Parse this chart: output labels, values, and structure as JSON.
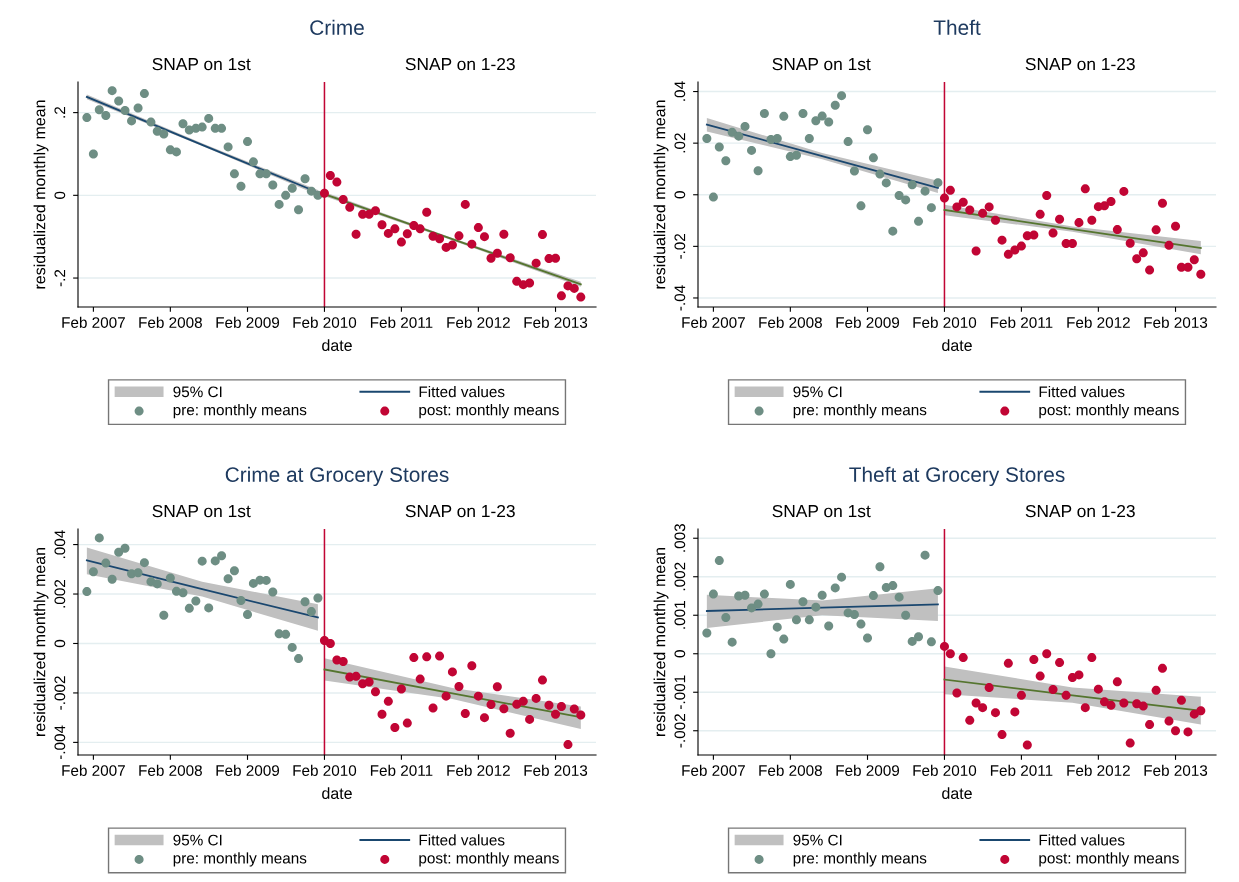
{
  "chart_data": [
    {
      "type": "scatter",
      "title": "Crime",
      "xlabel": "date",
      "ylabel": "residualized monthly mean",
      "annotations": [
        "SNAP on 1st",
        "SNAP on 1-23"
      ],
      "xlim": [
        "2006-11-20",
        "2013-08-12"
      ],
      "ylim": [
        -0.27,
        0.274
      ],
      "xticks": [
        {
          "value": "2007-02",
          "label": "Feb 2007"
        },
        {
          "value": "2008-02",
          "label": "Feb 2008"
        },
        {
          "value": "2009-02",
          "label": "Feb 2009"
        },
        {
          "value": "2010-02",
          "label": "Feb 2010"
        },
        {
          "value": "2011-02",
          "label": "Feb 2011"
        },
        {
          "value": "2012-02",
          "label": "Feb 2012"
        },
        {
          "value": "2013-02",
          "label": "Feb 2013"
        }
      ],
      "yticks": [
        {
          "value": -0.2,
          "label": "-.2"
        },
        0,
        {
          "value": 0.2,
          "label": ".2"
        }
      ],
      "grid": "y",
      "legend": "bottom",
      "ref_lines": [
        {
          "axis": "x",
          "value": "2010-02",
          "color": "#c10534"
        }
      ],
      "series": [
        {
          "name": "95% CI",
          "type": "area",
          "color": "#c0c0c0"
        },
        {
          "name": "Fitted values",
          "type": "line",
          "color": "#1a476f",
          "x": [
            "2007-01",
            "2008-07",
            "2010-01"
          ],
          "values": [
            0.238,
            0.122,
            0.007
          ],
          "lower": [
            0.232,
            0.119,
            0.001
          ],
          "upper": [
            0.244,
            0.126,
            0.013
          ]
        },
        {
          "type": "line",
          "color": "#55752f",
          "x": [
            "2010-02",
            "2011-10",
            "2013-06"
          ],
          "values": [
            0.003,
            -0.106,
            -0.215
          ],
          "lower": [
            -0.002,
            -0.109,
            -0.221
          ],
          "upper": [
            0.008,
            -0.103,
            -0.209
          ]
        },
        {
          "name": "pre: monthly means",
          "marker": "circle",
          "color": "#6e8e84",
          "x": [
            "2007-01",
            "2007-02",
            "2007-03",
            "2007-04",
            "2007-05",
            "2007-06",
            "2007-07",
            "2007-08",
            "2007-09",
            "2007-10",
            "2007-11",
            "2007-12",
            "2008-01",
            "2008-02",
            "2008-03",
            "2008-04",
            "2008-05",
            "2008-06",
            "2008-07",
            "2008-08",
            "2008-09",
            "2008-10",
            "2008-11",
            "2008-12",
            "2009-01",
            "2009-02",
            "2009-03",
            "2009-04",
            "2009-05",
            "2009-06",
            "2009-07",
            "2009-08",
            "2009-09",
            "2009-10",
            "2009-11",
            "2009-12",
            "2010-01"
          ],
          "values": [
            0.188,
            0.1,
            0.207,
            0.193,
            0.253,
            0.228,
            0.205,
            0.18,
            0.211,
            0.246,
            0.177,
            0.155,
            0.148,
            0.11,
            0.105,
            0.173,
            0.158,
            0.162,
            0.165,
            0.186,
            0.162,
            0.162,
            0.117,
            0.052,
            0.022,
            0.13,
            0.081,
            0.052,
            0.052,
            0.025,
            -0.022,
            0.0,
            0.017,
            -0.035,
            0.04,
            0.01,
            0.0
          ]
        },
        {
          "name": "post: monthly means",
          "marker": "circle",
          "color": "#c10534",
          "x": [
            "2010-02",
            "2010-03",
            "2010-04",
            "2010-05",
            "2010-06",
            "2010-07",
            "2010-08",
            "2010-09",
            "2010-10",
            "2010-11",
            "2010-12",
            "2011-01",
            "2011-02",
            "2011-03",
            "2011-04",
            "2011-05",
            "2011-06",
            "2011-07",
            "2011-08",
            "2011-09",
            "2011-10",
            "2011-11",
            "2011-12",
            "2012-01",
            "2012-02",
            "2012-03",
            "2012-04",
            "2012-05",
            "2012-06",
            "2012-07",
            "2012-08",
            "2012-09",
            "2012-10",
            "2012-11",
            "2012-12",
            "2013-01",
            "2013-02",
            "2013-03",
            "2013-04",
            "2013-05",
            "2013-06"
          ],
          "values": [
            0.005,
            0.048,
            0.032,
            -0.01,
            -0.029,
            -0.094,
            -0.046,
            -0.046,
            -0.037,
            -0.071,
            -0.092,
            -0.081,
            -0.113,
            -0.093,
            -0.073,
            -0.081,
            -0.041,
            -0.099,
            -0.105,
            -0.126,
            -0.12,
            -0.098,
            -0.022,
            -0.118,
            -0.078,
            -0.1,
            -0.152,
            -0.14,
            -0.094,
            -0.151,
            -0.208,
            -0.216,
            -0.212,
            -0.164,
            -0.095,
            -0.153,
            -0.152,
            -0.243,
            -0.219,
            -0.225,
            -0.246
          ]
        }
      ]
    },
    {
      "type": "scatter",
      "title": "Theft",
      "xlabel": "date",
      "ylabel": "residualized monthly mean",
      "annotations": [
        "SNAP on 1st",
        "SNAP on 1-23"
      ],
      "xlim": [
        "2006-11-20",
        "2013-08-12"
      ],
      "ylim": [
        -0.0435,
        0.0437
      ],
      "xticks": [
        {
          "value": "2007-02",
          "label": "Feb 2007"
        },
        {
          "value": "2008-02",
          "label": "Feb 2008"
        },
        {
          "value": "2009-02",
          "label": "Feb 2009"
        },
        {
          "value": "2010-02",
          "label": "Feb 2010"
        },
        {
          "value": "2011-02",
          "label": "Feb 2011"
        },
        {
          "value": "2012-02",
          "label": "Feb 2012"
        },
        {
          "value": "2013-02",
          "label": "Feb 2013"
        }
      ],
      "yticks": [
        {
          "value": -0.04,
          "label": "-.04"
        },
        {
          "value": -0.02,
          "label": "-.02"
        },
        0,
        {
          "value": 0.02,
          "label": ".02"
        },
        {
          "value": 0.04,
          "label": ".04"
        }
      ],
      "grid": "y",
      "legend": "bottom",
      "ref_lines": [
        {
          "axis": "x",
          "value": "2010-02",
          "color": "#c10534"
        }
      ],
      "series": [
        {
          "name": "95% CI",
          "type": "area",
          "color": "#c0c0c0"
        },
        {
          "name": "Fitted values",
          "type": "line",
          "color": "#1a476f",
          "x": [
            "2007-01",
            "2008-07",
            "2010-01"
          ],
          "values": [
            0.0272,
            0.015,
            0.0027
          ],
          "lower": [
            0.0245,
            0.0138,
            0.0007
          ],
          "upper": [
            0.0297,
            0.0162,
            0.0054
          ]
        },
        {
          "type": "line",
          "color": "#55752f",
          "x": [
            "2010-02",
            "2011-10",
            "2013-06"
          ],
          "values": [
            -0.0059,
            -0.0133,
            -0.0206
          ],
          "lower": [
            -0.0079,
            -0.0143,
            -0.0231
          ],
          "upper": [
            -0.0039,
            -0.0123,
            -0.0179
          ]
        },
        {
          "name": "pre: monthly means",
          "marker": "circle",
          "color": "#6e8e84",
          "x": [
            "2007-01",
            "2007-02",
            "2007-03",
            "2007-04",
            "2007-05",
            "2007-06",
            "2007-07",
            "2007-08",
            "2007-09",
            "2007-10",
            "2007-11",
            "2007-12",
            "2008-01",
            "2008-02",
            "2008-03",
            "2008-04",
            "2008-05",
            "2008-06",
            "2008-07",
            "2008-08",
            "2008-09",
            "2008-10",
            "2008-11",
            "2008-12",
            "2009-01",
            "2009-02",
            "2009-03",
            "2009-04",
            "2009-05",
            "2009-06",
            "2009-07",
            "2009-08",
            "2009-09",
            "2009-10",
            "2009-11",
            "2009-12",
            "2010-01"
          ],
          "values": [
            0.0218,
            -0.0009,
            0.0185,
            0.0132,
            0.0242,
            0.0227,
            0.0265,
            0.0172,
            0.0093,
            0.0315,
            0.0214,
            0.0218,
            0.0304,
            0.0148,
            0.0153,
            0.0315,
            0.0218,
            0.0287,
            0.0305,
            0.0282,
            0.0347,
            0.0384,
            0.0206,
            0.0092,
            -0.0043,
            0.0252,
            0.0143,
            0.008,
            0.0046,
            -0.0141,
            -0.0003,
            -0.002,
            0.0039,
            -0.0103,
            0.0014,
            -0.005,
            0.0047
          ]
        },
        {
          "name": "post: monthly means",
          "marker": "circle",
          "color": "#c10534",
          "x": [
            "2010-02",
            "2010-03",
            "2010-04",
            "2010-05",
            "2010-06",
            "2010-07",
            "2010-08",
            "2010-09",
            "2010-10",
            "2010-11",
            "2010-12",
            "2011-01",
            "2011-02",
            "2011-03",
            "2011-04",
            "2011-05",
            "2011-06",
            "2011-07",
            "2011-08",
            "2011-09",
            "2011-10",
            "2011-11",
            "2011-12",
            "2012-01",
            "2012-02",
            "2012-03",
            "2012-04",
            "2012-05",
            "2012-06",
            "2012-07",
            "2012-08",
            "2012-09",
            "2012-10",
            "2012-11",
            "2012-12",
            "2013-01",
            "2013-02",
            "2013-03",
            "2013-04",
            "2013-05",
            "2013-06"
          ],
          "values": [
            -0.0013,
            0.0017,
            -0.0047,
            -0.0029,
            -0.0059,
            -0.0218,
            -0.0072,
            -0.0047,
            -0.0099,
            -0.0176,
            -0.0231,
            -0.0214,
            -0.0199,
            -0.0159,
            -0.0156,
            -0.0076,
            -0.0003,
            -0.0148,
            -0.0095,
            -0.0189,
            -0.0189,
            -0.0108,
            0.0023,
            -0.0099,
            -0.0046,
            -0.0043,
            -0.0026,
            -0.0135,
            0.0013,
            -0.0188,
            -0.0248,
            -0.0225,
            -0.0292,
            -0.0136,
            -0.0033,
            -0.0196,
            -0.0122,
            -0.0281,
            -0.0281,
            -0.0252,
            -0.0308
          ]
        }
      ]
    },
    {
      "type": "scatter",
      "title": "Crime at Grocery Stores",
      "xlabel": "date",
      "ylabel": "residualized monthly mean",
      "annotations": [
        "SNAP on 1st",
        "SNAP on 1-23"
      ],
      "xlim": [
        "2006-11-20",
        "2013-08-12"
      ],
      "ylim": [
        -0.00451,
        0.00463
      ],
      "xticks": [
        {
          "value": "2007-02",
          "label": "Feb 2007"
        },
        {
          "value": "2008-02",
          "label": "Feb 2008"
        },
        {
          "value": "2009-02",
          "label": "Feb 2009"
        },
        {
          "value": "2010-02",
          "label": "Feb 2010"
        },
        {
          "value": "2011-02",
          "label": "Feb 2011"
        },
        {
          "value": "2012-02",
          "label": "Feb 2012"
        },
        {
          "value": "2013-02",
          "label": "Feb 2013"
        }
      ],
      "yticks": [
        {
          "value": -0.004,
          "label": "-.004"
        },
        {
          "value": -0.002,
          "label": "-.002"
        },
        0,
        {
          "value": 0.002,
          "label": ".002"
        },
        {
          "value": 0.004,
          "label": ".004"
        }
      ],
      "grid": "y",
      "legend": "bottom",
      "ref_lines": [
        {
          "axis": "x",
          "value": "2010-02",
          "color": "#c10534"
        }
      ],
      "series": [
        {
          "name": "95% CI",
          "type": "area",
          "color": "#c0c0c0"
        },
        {
          "name": "Fitted values",
          "type": "line",
          "color": "#1a476f",
          "x": [
            "2007-01",
            "2008-07",
            "2010-01"
          ],
          "values": [
            0.00336,
            0.0022,
            0.00105
          ],
          "lower": [
            0.0028,
            0.0019,
            0.00051
          ],
          "upper": [
            0.00388,
            0.0025,
            0.00159
          ]
        },
        {
          "type": "line",
          "color": "#55752f",
          "x": [
            "2010-02",
            "2011-10",
            "2013-06"
          ],
          "values": [
            -0.00105,
            -0.00202,
            -0.00298
          ],
          "lower": [
            -0.0015,
            -0.00225,
            -0.00346
          ],
          "upper": [
            -0.0006,
            -0.0018,
            -0.00255
          ]
        },
        {
          "name": "pre: monthly means",
          "marker": "circle",
          "color": "#6e8e84",
          "x": [
            "2007-01",
            "2007-02",
            "2007-03",
            "2007-04",
            "2007-05",
            "2007-06",
            "2007-07",
            "2007-08",
            "2007-09",
            "2007-10",
            "2007-11",
            "2007-12",
            "2008-01",
            "2008-02",
            "2008-03",
            "2008-04",
            "2008-05",
            "2008-06",
            "2008-07",
            "2008-08",
            "2008-09",
            "2008-10",
            "2008-11",
            "2008-12",
            "2009-01",
            "2009-02",
            "2009-03",
            "2009-04",
            "2009-05",
            "2009-06",
            "2009-07",
            "2009-08",
            "2009-09",
            "2009-10",
            "2009-11",
            "2009-12",
            "2010-01"
          ],
          "values": [
            0.0021,
            0.0029,
            0.00427,
            0.00325,
            0.0026,
            0.00369,
            0.00385,
            0.00282,
            0.00286,
            0.00327,
            0.0025,
            0.00241,
            0.00114,
            0.00265,
            0.00211,
            0.00205,
            0.00142,
            0.00172,
            0.00333,
            0.00144,
            0.00334,
            0.00355,
            0.00262,
            0.00294,
            0.00174,
            0.00117,
            0.00243,
            0.00256,
            0.00255,
            0.00208,
            0.00039,
            0.00037,
            -0.00016,
            -0.00061,
            0.00169,
            0.00129,
            0.00184
          ]
        },
        {
          "name": "post: monthly means",
          "marker": "circle",
          "color": "#c10534",
          "x": [
            "2010-02",
            "2010-03",
            "2010-04",
            "2010-05",
            "2010-06",
            "2010-07",
            "2010-08",
            "2010-09",
            "2010-10",
            "2010-11",
            "2010-12",
            "2011-01",
            "2011-02",
            "2011-03",
            "2011-04",
            "2011-05",
            "2011-06",
            "2011-07",
            "2011-08",
            "2011-09",
            "2011-10",
            "2011-11",
            "2011-12",
            "2012-01",
            "2012-02",
            "2012-03",
            "2012-04",
            "2012-05",
            "2012-06",
            "2012-07",
            "2012-08",
            "2012-09",
            "2012-10",
            "2012-11",
            "2012-12",
            "2013-01",
            "2013-02",
            "2013-03",
            "2013-04",
            "2013-05",
            "2013-06"
          ],
          "values": [
            0.00012,
            0.0,
            -0.00067,
            -0.00073,
            -0.00136,
            -0.00133,
            -0.00163,
            -0.00156,
            -0.00195,
            -0.00286,
            -0.00234,
            -0.0034,
            -0.00184,
            -0.00322,
            -0.00057,
            -0.00144,
            -0.00054,
            -0.00261,
            -0.00051,
            -0.00213,
            -0.00115,
            -0.00174,
            -0.00283,
            -0.0009,
            -0.00213,
            -0.003,
            -0.00247,
            -0.00175,
            -0.00264,
            -0.00363,
            -0.00246,
            -0.00234,
            -0.00307,
            -0.00222,
            -0.00148,
            -0.0025,
            -0.00286,
            -0.00255,
            -0.00409,
            -0.00265,
            -0.00289
          ]
        }
      ]
    },
    {
      "type": "scatter",
      "title": "Theft at Grocery Stores",
      "xlabel": "date",
      "ylabel": "residualized monthly mean",
      "annotations": [
        "SNAP on 1st",
        "SNAP on 1-23"
      ],
      "xlim": [
        "2006-11-20",
        "2013-08-12"
      ],
      "ylim": [
        -0.00263,
        0.00324
      ],
      "xticks": [
        {
          "value": "2007-02",
          "label": "Feb 2007"
        },
        {
          "value": "2008-02",
          "label": "Feb 2008"
        },
        {
          "value": "2009-02",
          "label": "Feb 2009"
        },
        {
          "value": "2010-02",
          "label": "Feb 2010"
        },
        {
          "value": "2011-02",
          "label": "Feb 2011"
        },
        {
          "value": "2012-02",
          "label": "Feb 2012"
        },
        {
          "value": "2013-02",
          "label": "Feb 2013"
        }
      ],
      "yticks": [
        {
          "value": -0.002,
          "label": "-.002"
        },
        {
          "value": -0.001,
          "label": "-.001"
        },
        0,
        {
          "value": 0.001,
          "label": ".001"
        },
        {
          "value": 0.002,
          "label": ".002"
        },
        {
          "value": 0.003,
          "label": ".003"
        }
      ],
      "grid": "y",
      "legend": "bottom",
      "ref_lines": [
        {
          "axis": "x",
          "value": "2010-02",
          "color": "#c10534"
        }
      ],
      "series": [
        {
          "name": "95% CI",
          "type": "area",
          "color": "#c0c0c0"
        },
        {
          "name": "Fitted values",
          "type": "line",
          "color": "#1a476f",
          "x": [
            "2007-01",
            "2008-07",
            "2010-01"
          ],
          "values": [
            0.00111,
            0.0012,
            0.00128
          ],
          "lower": [
            0.00067,
            0.001,
            0.00085
          ],
          "upper": [
            0.00153,
            0.00138,
            0.0017
          ]
        },
        {
          "type": "line",
          "color": "#55752f",
          "x": [
            "2010-02",
            "2011-10",
            "2013-06"
          ],
          "values": [
            -0.00067,
            -0.00108,
            -0.00148
          ],
          "lower": [
            -0.00105,
            -0.00127,
            -0.00184
          ],
          "upper": [
            -0.00033,
            -0.00088,
            -0.00112
          ]
        },
        {
          "name": "pre: monthly means",
          "marker": "circle",
          "color": "#6e8e84",
          "x": [
            "2007-01",
            "2007-02",
            "2007-03",
            "2007-04",
            "2007-05",
            "2007-06",
            "2007-07",
            "2007-08",
            "2007-09",
            "2007-10",
            "2007-11",
            "2007-12",
            "2008-01",
            "2008-02",
            "2008-03",
            "2008-04",
            "2008-05",
            "2008-06",
            "2008-07",
            "2008-08",
            "2008-09",
            "2008-10",
            "2008-11",
            "2008-12",
            "2009-01",
            "2009-02",
            "2009-03",
            "2009-04",
            "2009-05",
            "2009-06",
            "2009-07",
            "2009-08",
            "2009-09",
            "2009-10",
            "2009-11",
            "2009-12",
            "2010-01"
          ],
          "values": [
            0.00054,
            0.00155,
            0.00242,
            0.00094,
            0.0003,
            0.0015,
            0.00152,
            0.00119,
            0.00129,
            0.00155,
            0.0,
            0.00069,
            0.00038,
            0.0018,
            0.00088,
            0.00135,
            0.00088,
            0.00121,
            0.00152,
            0.00072,
            0.00171,
            0.00199,
            0.00106,
            0.00102,
            0.00077,
            0.00041,
            0.00151,
            0.00226,
            0.00172,
            0.00177,
            0.00147,
            0.001,
            0.00032,
            0.00044,
            0.00256,
            0.00031,
            0.00164
          ]
        },
        {
          "name": "post: monthly means",
          "marker": "circle",
          "color": "#c10534",
          "x": [
            "2010-02",
            "2010-03",
            "2010-04",
            "2010-05",
            "2010-06",
            "2010-07",
            "2010-08",
            "2010-09",
            "2010-10",
            "2010-11",
            "2010-12",
            "2011-01",
            "2011-02",
            "2011-03",
            "2011-04",
            "2011-05",
            "2011-06",
            "2011-07",
            "2011-08",
            "2011-09",
            "2011-10",
            "2011-11",
            "2011-12",
            "2012-01",
            "2012-02",
            "2012-03",
            "2012-04",
            "2012-05",
            "2012-06",
            "2012-07",
            "2012-08",
            "2012-09",
            "2012-10",
            "2012-11",
            "2012-12",
            "2013-01",
            "2013-02",
            "2013-03",
            "2013-04",
            "2013-05",
            "2013-06"
          ],
          "values": [
            0.00019,
            0.0,
            -0.00102,
            -0.0001,
            -0.00173,
            -0.00128,
            -0.0014,
            -0.00088,
            -0.00153,
            -0.0021,
            -0.00025,
            -0.00151,
            -0.00108,
            -0.00237,
            -0.00015,
            -0.00058,
            0.0,
            -0.00093,
            -0.00023,
            -0.00108,
            -0.00062,
            -0.00055,
            -0.0014,
            -0.0001,
            -0.00092,
            -0.00125,
            -0.00134,
            -0.00073,
            -0.00128,
            -0.00232,
            -0.0013,
            -0.00136,
            -0.00184,
            -0.00095,
            -0.00038,
            -0.00175,
            -0.002,
            -0.00121,
            -0.00203,
            -0.00157,
            -0.00148
          ]
        }
      ]
    }
  ]
}
